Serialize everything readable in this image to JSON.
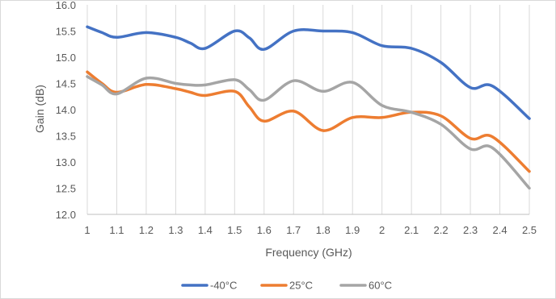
{
  "chart_data": {
    "type": "line",
    "title": "",
    "xlabel": "Frequency (GHz)",
    "ylabel": "Gain (dB)",
    "xlim": [
      1,
      2.5
    ],
    "ylim": [
      12.0,
      16.0
    ],
    "x_ticks": [
      "1",
      "1.1",
      "1.2",
      "1.3",
      "1.4",
      "1.5",
      "1.6",
      "1.7",
      "1.8",
      "1.9",
      "2",
      "2.1",
      "2.2",
      "2.3",
      "2.4",
      "2.5"
    ],
    "y_ticks": [
      "12.0",
      "12.5",
      "13.0",
      "13.5",
      "14.0",
      "14.5",
      "15.0",
      "15.5",
      "16.0"
    ],
    "grid": "vertical",
    "legend_position": "bottom",
    "x": [
      1,
      1.05,
      1.1,
      1.2,
      1.3,
      1.35,
      1.4,
      1.5,
      1.55,
      1.6,
      1.7,
      1.8,
      1.9,
      2,
      2.1,
      2.2,
      2.3,
      2.375,
      2.5
    ],
    "series": [
      {
        "name": "-40°C",
        "color": "#4472c4",
        "values": [
          15.58,
          15.47,
          15.38,
          15.47,
          15.38,
          15.27,
          15.17,
          15.5,
          15.37,
          15.15,
          15.5,
          15.5,
          15.47,
          15.22,
          15.17,
          14.9,
          14.42,
          14.45,
          13.83
        ]
      },
      {
        "name": "25°C",
        "color": "#ed7d31",
        "values": [
          14.72,
          14.5,
          14.33,
          14.48,
          14.4,
          14.33,
          14.27,
          14.35,
          14.05,
          13.78,
          13.97,
          13.6,
          13.85,
          13.85,
          13.95,
          13.88,
          13.45,
          13.48,
          12.82
        ]
      },
      {
        "name": "60°C",
        "color": "#a5a5a5",
        "values": [
          14.63,
          14.47,
          14.3,
          14.6,
          14.5,
          14.47,
          14.47,
          14.57,
          14.38,
          14.18,
          14.55,
          14.35,
          14.52,
          14.08,
          13.95,
          13.72,
          13.25,
          13.27,
          12.5
        ]
      }
    ]
  }
}
